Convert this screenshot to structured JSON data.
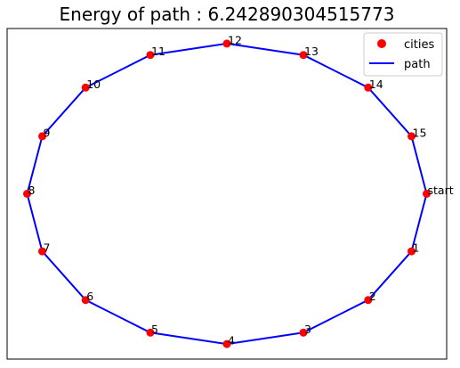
{
  "chart_data": {
    "type": "scatter",
    "title": "Energy of path : 6.242890304515773",
    "xlabel": "",
    "ylabel": "",
    "xlim": [
      -1.1,
      1.1
    ],
    "ylim": [
      -1.1,
      1.1
    ],
    "grid": false,
    "axes_ticks": false,
    "legend_position": "top-right",
    "colors": {
      "cities": "#ff0000",
      "path": "#0000ff"
    },
    "series": [
      {
        "name": "cities",
        "kind": "scatter",
        "labels": [
          "start",
          "1",
          "2",
          "3",
          "4",
          "5",
          "6",
          "7",
          "8",
          "9",
          "10",
          "11",
          "12",
          "13",
          "14",
          "15"
        ],
        "x": [
          1.0,
          0.924,
          0.707,
          0.383,
          0.0,
          -0.383,
          -0.707,
          -0.924,
          -1.0,
          -0.924,
          -0.707,
          -0.383,
          0.0,
          0.383,
          0.707,
          0.924
        ],
        "y": [
          0.0,
          -0.383,
          -0.707,
          -0.924,
          -1.0,
          -0.924,
          -0.707,
          -0.383,
          0.0,
          0.383,
          0.707,
          0.924,
          1.0,
          0.924,
          0.707,
          0.383
        ]
      },
      {
        "name": "path",
        "kind": "line",
        "order": [
          "start",
          "1",
          "2",
          "3",
          "4",
          "5",
          "6",
          "7",
          "8",
          "9",
          "10",
          "11",
          "12",
          "13",
          "14",
          "15"
        ]
      }
    ]
  }
}
